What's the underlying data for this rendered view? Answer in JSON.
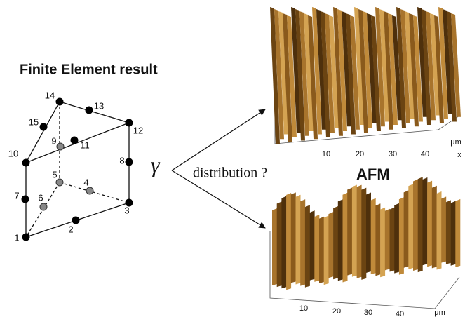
{
  "title": "Finite Element result",
  "nodes": [
    {
      "label": "1"
    },
    {
      "label": "2"
    },
    {
      "label": "3"
    },
    {
      "label": "4"
    },
    {
      "label": "5"
    },
    {
      "label": "6"
    },
    {
      "label": "7"
    },
    {
      "label": "8"
    },
    {
      "label": "9"
    },
    {
      "label": "10"
    },
    {
      "label": "11"
    },
    {
      "label": "12"
    },
    {
      "label": "13"
    },
    {
      "label": "14"
    },
    {
      "label": "15"
    }
  ],
  "symbol": "γ",
  "question": "distribution ?",
  "afm_label": "AFM",
  "afm_top": {
    "ticks": [
      "10",
      "20",
      "30",
      "40"
    ],
    "unit": "μm",
    "axis": "x"
  },
  "afm_bottom": {
    "ticks": [
      "10",
      "20",
      "30",
      "40"
    ],
    "unit": "μm"
  }
}
